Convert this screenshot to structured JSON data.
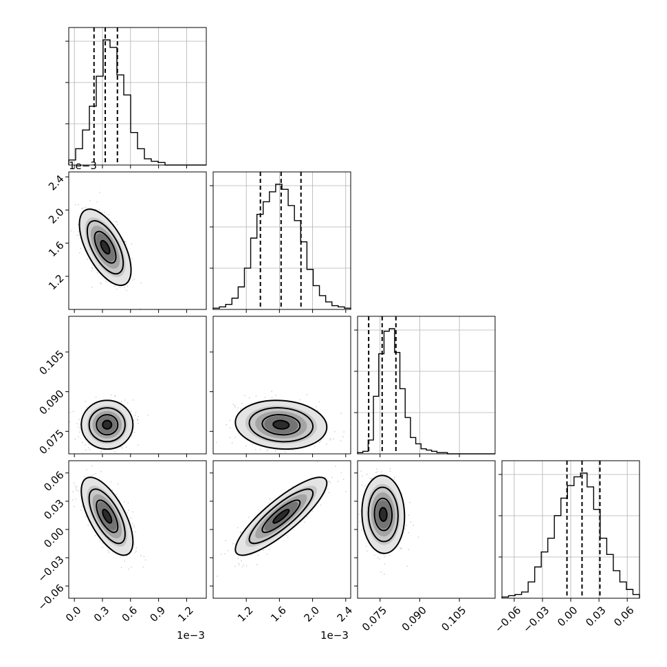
{
  "chart_data": {
    "type": "corner",
    "parameters": 4,
    "grid": true,
    "offsets": {
      "p0_x": "1e−3",
      "p1_y": "1e−3",
      "p1_x": "1e−3"
    },
    "ranges": [
      [
        -0.06,
        1.41
      ],
      [
        0.8,
        2.46
      ],
      [
        0.0665,
        0.1185
      ],
      [
        -0.073,
        0.073
      ]
    ],
    "ticks": [
      {
        "values": [
          0.0,
          0.3,
          0.6,
          0.9,
          1.2
        ],
        "labels": [
          "0.0",
          "0.3",
          "0.6",
          "0.9",
          "1.2"
        ]
      },
      {
        "values": [
          1.2,
          1.6,
          2.0,
          2.4
        ],
        "labels": [
          "1.2",
          "1.6",
          "2.0",
          "2.4"
        ]
      },
      {
        "values": [
          0.075,
          0.09,
          0.105
        ],
        "labels": [
          "0.075",
          "0.090",
          "0.105"
        ]
      },
      {
        "values": [
          -0.06,
          -0.03,
          0.0,
          0.03,
          0.06
        ],
        "labels": [
          "−0.06",
          "−0.03",
          "0.00",
          "0.03",
          "0.06"
        ]
      }
    ],
    "histograms": [
      {
        "counts": [
          4,
          13,
          28,
          47,
          71,
          100,
          94,
          72,
          56,
          26,
          13,
          5,
          3,
          2,
          0,
          0,
          0,
          0,
          0,
          0
        ],
        "quantiles": [
          0.21,
          0.33,
          0.46
        ]
      },
      {
        "counts": [
          1,
          2,
          4,
          9,
          18,
          33,
          57,
          76,
          86,
          94,
          100,
          96,
          83,
          71,
          54,
          32,
          19,
          11,
          6,
          3,
          2,
          1
        ],
        "quantiles": [
          1.37,
          1.62,
          1.86
        ]
      },
      {
        "counts": [
          1,
          2,
          11,
          46,
          80,
          98,
          100,
          81,
          52,
          29,
          13,
          8,
          4,
          3,
          2,
          1,
          1,
          0,
          0,
          0,
          0,
          0,
          0,
          0,
          0,
          0
        ],
        "quantiles": [
          0.0707,
          0.0758,
          0.081
        ]
      },
      {
        "counts": [
          1,
          2,
          3,
          5,
          13,
          25,
          37,
          48,
          66,
          80,
          90,
          97,
          100,
          89,
          71,
          48,
          35,
          22,
          13,
          7,
          3
        ],
        "quantiles": [
          -0.004,
          0.012,
          0.031
        ]
      }
    ],
    "pairs": [
      {
        "row": 1,
        "col": 0,
        "mean": [
          0.33,
          1.55
        ],
        "sd": [
          0.12,
          0.2
        ],
        "corr": -0.6
      },
      {
        "row": 2,
        "col": 0,
        "mean": [
          0.35,
          0.0775
        ],
        "sd": [
          0.12,
          0.004
        ],
        "corr": 0.0
      },
      {
        "row": 2,
        "col": 1,
        "mean": [
          1.62,
          0.0775
        ],
        "sd": [
          0.24,
          0.004
        ],
        "corr": -0.1
      },
      {
        "row": 3,
        "col": 0,
        "mean": [
          0.35,
          0.014
        ],
        "sd": [
          0.12,
          0.018
        ],
        "corr": -0.65
      },
      {
        "row": 3,
        "col": 1,
        "mean": [
          1.62,
          0.014
        ],
        "sd": [
          0.24,
          0.018
        ],
        "corr": 0.85
      },
      {
        "row": 3,
        "col": 2,
        "mean": [
          0.0762,
          0.016
        ],
        "sd": [
          0.0035,
          0.018
        ],
        "corr": -0.05
      }
    ]
  }
}
